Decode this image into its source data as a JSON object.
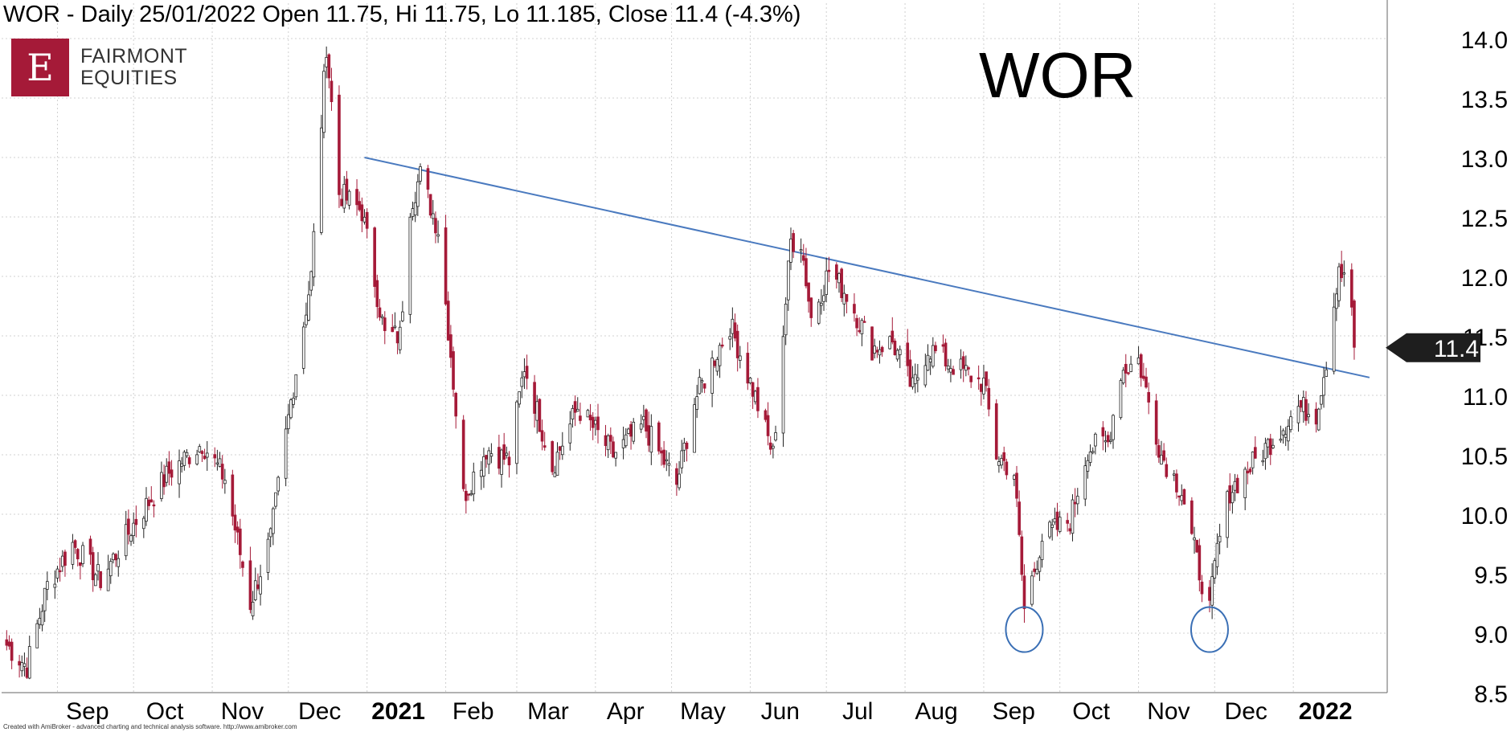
{
  "header": {
    "text": "WOR - Daily 25/01/2022 Open 11.75, Hi 11.75, Lo 11.185, Close 11.4 (-4.3%)"
  },
  "logo": {
    "mark": "E",
    "line1": "FAIRMONT",
    "line2": "EQUITIES"
  },
  "ticker": "WOR",
  "price_badge": "11.4",
  "credit": "Created with AmiBroker - advanced charting and technical analysis software. http://www.amibroker.com",
  "colors": {
    "up": "#ffffff",
    "down": "#a51a38",
    "outline": "#222222",
    "trendline": "#4a7abf",
    "circle": "#3a6fb5",
    "grid": "#d0d0d0",
    "badge": "#1e1e1e"
  },
  "chart_data": {
    "type": "candlestick",
    "ylim": [
      8.5,
      14.0
    ],
    "ytick_values": [
      8.5,
      9.0,
      9.5,
      10.0,
      10.5,
      11.0,
      11.5,
      12.0,
      12.5,
      13.0,
      13.5,
      14.0
    ],
    "ytick_labels": [
      "8.5",
      "9.0",
      "9.5",
      "10.0",
      "10.5",
      "11.0",
      "11.5",
      "12.0",
      "12.5",
      "13.0",
      "13.5",
      "14.0"
    ],
    "months": [
      {
        "label": "Sep",
        "bold": false
      },
      {
        "label": "Oct",
        "bold": false
      },
      {
        "label": "Nov",
        "bold": false
      },
      {
        "label": "Dec",
        "bold": false
      },
      {
        "label": "2021",
        "bold": true
      },
      {
        "label": "Feb",
        "bold": false
      },
      {
        "label": "Mar",
        "bold": false
      },
      {
        "label": "Apr",
        "bold": false
      },
      {
        "label": "May",
        "bold": false
      },
      {
        "label": "Jun",
        "bold": false
      },
      {
        "label": "Jul",
        "bold": false
      },
      {
        "label": "Aug",
        "bold": false
      },
      {
        "label": "Sep",
        "bold": false
      },
      {
        "label": "Oct",
        "bold": false
      },
      {
        "label": "Nov",
        "bold": false
      },
      {
        "label": "Dec",
        "bold": false
      },
      {
        "label": "2022",
        "bold": true
      }
    ],
    "trendline": {
      "start": {
        "date": "2020-12-31",
        "value": 13.0
      },
      "end": {
        "date": "2022-01-31",
        "value": 11.15
      }
    },
    "circled_lows": [
      {
        "date": "2021-09-17",
        "value": 9.03
      },
      {
        "date": "2021-11-29",
        "value": 9.03
      }
    ],
    "last_close": 11.4,
    "anchors": [
      {
        "date": "2020-08-12",
        "value": 8.9
      },
      {
        "date": "2020-08-20",
        "value": 8.72
      },
      {
        "date": "2020-08-28",
        "value": 9.4
      },
      {
        "date": "2020-09-07",
        "value": 9.75
      },
      {
        "date": "2020-09-18",
        "value": 9.45
      },
      {
        "date": "2020-10-02",
        "value": 9.95
      },
      {
        "date": "2020-10-15",
        "value": 10.35
      },
      {
        "date": "2020-10-28",
        "value": 10.6
      },
      {
        "date": "2020-11-06",
        "value": 10.3
      },
      {
        "date": "2020-11-16",
        "value": 9.25
      },
      {
        "date": "2020-11-24",
        "value": 9.8
      },
      {
        "date": "2020-12-02",
        "value": 10.95
      },
      {
        "date": "2020-12-10",
        "value": 12.0
      },
      {
        "date": "2020-12-16",
        "value": 13.95
      },
      {
        "date": "2020-12-21",
        "value": 12.7
      },
      {
        "date": "2020-12-30",
        "value": 12.55
      },
      {
        "date": "2021-01-08",
        "value": 11.5
      },
      {
        "date": "2021-01-14",
        "value": 11.5
      },
      {
        "date": "2021-01-18",
        "value": 12.6
      },
      {
        "date": "2021-01-22",
        "value": 12.85
      },
      {
        "date": "2021-01-29",
        "value": 12.4
      },
      {
        "date": "2021-02-03",
        "value": 11.35
      },
      {
        "date": "2021-02-08",
        "value": 10.15
      },
      {
        "date": "2021-02-17",
        "value": 10.55
      },
      {
        "date": "2021-02-26",
        "value": 10.45
      },
      {
        "date": "2021-03-04",
        "value": 11.25
      },
      {
        "date": "2021-03-15",
        "value": 10.4
      },
      {
        "date": "2021-03-25",
        "value": 10.9
      },
      {
        "date": "2021-04-08",
        "value": 10.5
      },
      {
        "date": "2021-04-20",
        "value": 10.75
      },
      {
        "date": "2021-05-03",
        "value": 10.25
      },
      {
        "date": "2021-05-10",
        "value": 10.95
      },
      {
        "date": "2021-05-24",
        "value": 11.6
      },
      {
        "date": "2021-06-02",
        "value": 11.05
      },
      {
        "date": "2021-06-10",
        "value": 10.5
      },
      {
        "date": "2021-06-17",
        "value": 12.3
      },
      {
        "date": "2021-06-21",
        "value": 12.3
      },
      {
        "date": "2021-06-25",
        "value": 11.65
      },
      {
        "date": "2021-07-02",
        "value": 12.05
      },
      {
        "date": "2021-07-09",
        "value": 11.85
      },
      {
        "date": "2021-07-19",
        "value": 11.4
      },
      {
        "date": "2021-07-27",
        "value": 11.45
      },
      {
        "date": "2021-08-04",
        "value": 11.05
      },
      {
        "date": "2021-08-10",
        "value": 11.4
      },
      {
        "date": "2021-08-20",
        "value": 11.25
      },
      {
        "date": "2021-09-01",
        "value": 11.1
      },
      {
        "date": "2021-09-06",
        "value": 10.5
      },
      {
        "date": "2021-09-13",
        "value": 10.35
      },
      {
        "date": "2021-09-17",
        "value": 9.2
      },
      {
        "date": "2021-09-24",
        "value": 9.8
      },
      {
        "date": "2021-10-05",
        "value": 9.95
      },
      {
        "date": "2021-10-12",
        "value": 10.55
      },
      {
        "date": "2021-10-20",
        "value": 10.6
      },
      {
        "date": "2021-10-25",
        "value": 11.2
      },
      {
        "date": "2021-11-01",
        "value": 11.3
      },
      {
        "date": "2021-11-10",
        "value": 10.5
      },
      {
        "date": "2021-11-18",
        "value": 10.2
      },
      {
        "date": "2021-11-24",
        "value": 9.6
      },
      {
        "date": "2021-11-29",
        "value": 9.2
      },
      {
        "date": "2021-12-02",
        "value": 9.7
      },
      {
        "date": "2021-12-07",
        "value": 10.2
      },
      {
        "date": "2021-12-17",
        "value": 10.45
      },
      {
        "date": "2022-01-03",
        "value": 10.9
      },
      {
        "date": "2022-01-10",
        "value": 10.85
      },
      {
        "date": "2022-01-14",
        "value": 11.3
      },
      {
        "date": "2022-01-19",
        "value": 12.1
      },
      {
        "date": "2022-01-24",
        "value": 11.75
      },
      {
        "date": "2022-01-25",
        "value": 11.4
      }
    ]
  }
}
